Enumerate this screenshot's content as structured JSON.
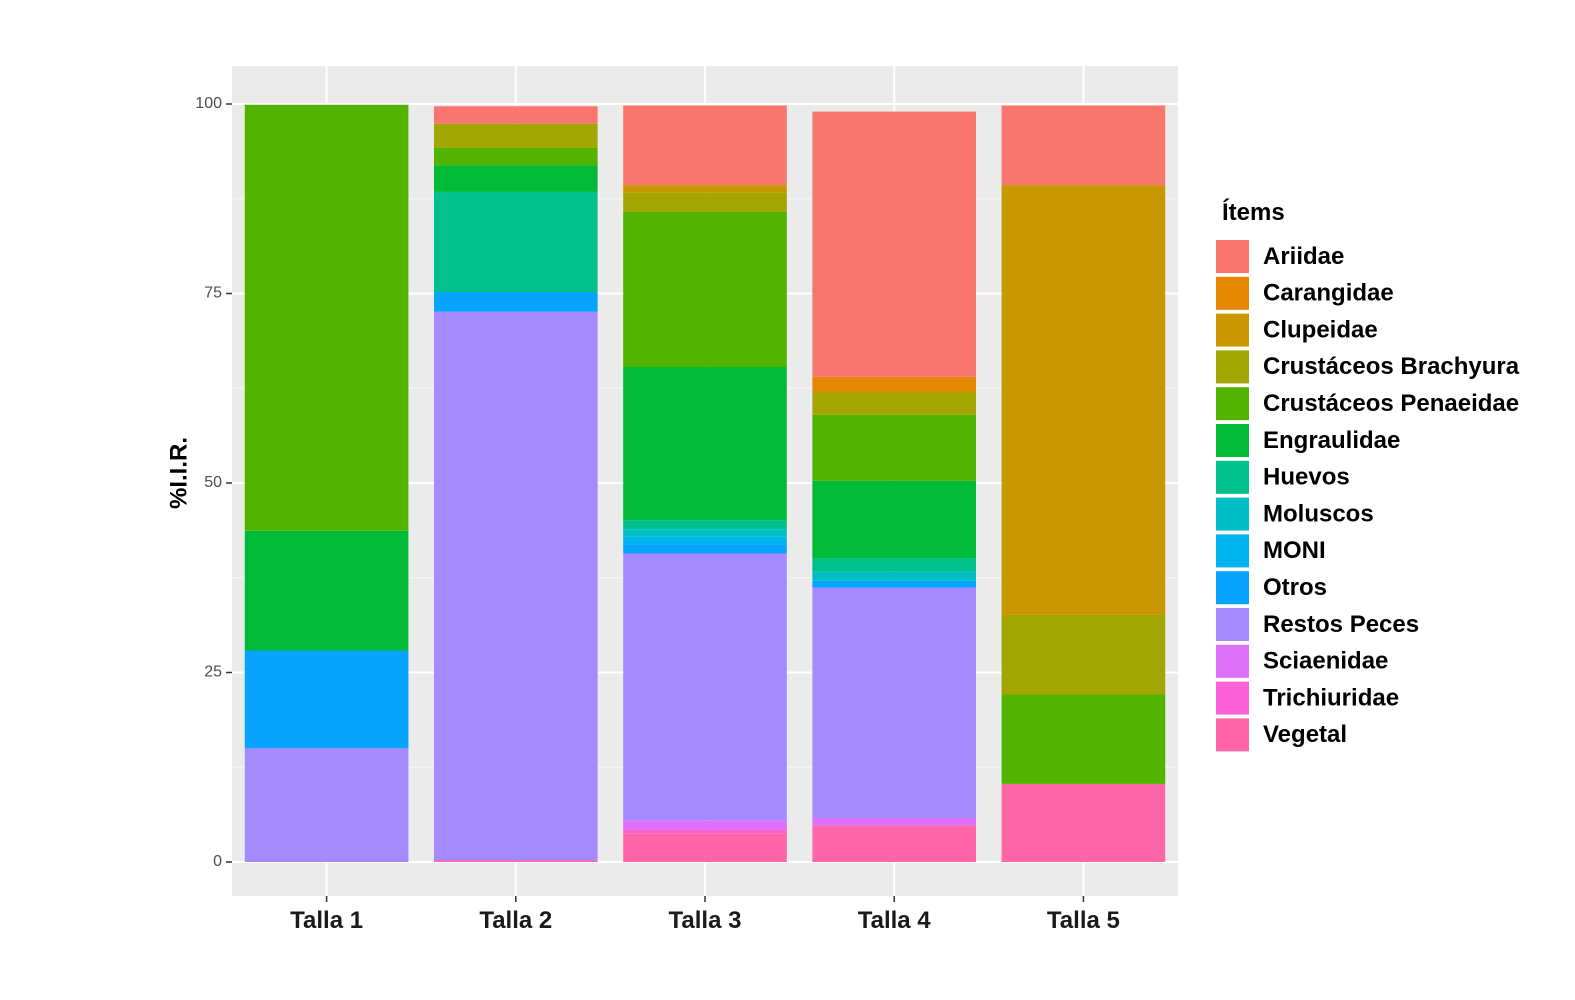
{
  "chart_data": {
    "type": "bar",
    "stacked": true,
    "title": "",
    "xlabel": "",
    "ylabel": "%I.I.R.",
    "ylim": [
      0,
      100
    ],
    "yticks": [
      0,
      25,
      50,
      75,
      100
    ],
    "grid": true,
    "legend_title": "Ítems",
    "legend_position": "right",
    "categories": [
      "Talla 1",
      "Talla 2",
      "Talla 3",
      "Talla 4",
      "Talla 5"
    ],
    "series": [
      {
        "name": "Ariidae",
        "color": "#F8766D",
        "values": [
          0,
          2.3,
          10.5,
          35.0,
          10.5
        ]
      },
      {
        "name": "Carangidae",
        "color": "#E58700",
        "values": [
          0,
          0,
          0,
          2.0,
          0
        ]
      },
      {
        "name": "Clupeidae",
        "color": "#C99800",
        "values": [
          0,
          0,
          1.0,
          0,
          56.7
        ]
      },
      {
        "name": "Crustáceos Brachyura",
        "color": "#A3A500",
        "values": [
          0,
          3.2,
          2.5,
          3.0,
          10.5
        ]
      },
      {
        "name": "Crustáceos Penaeidae",
        "color": "#53B400",
        "values": [
          56.2,
          2.3,
          20.5,
          8.7,
          11.8
        ]
      },
      {
        "name": "Engraulidae",
        "color": "#00BA38",
        "values": [
          15.8,
          3.5,
          20.2,
          10.2,
          0
        ]
      },
      {
        "name": "Huevos",
        "color": "#00C08B",
        "values": [
          0,
          13.2,
          1.2,
          1.8,
          0
        ]
      },
      {
        "name": "Moluscos",
        "color": "#00BFC4",
        "values": [
          0,
          0,
          1.0,
          1.2,
          0
        ]
      },
      {
        "name": "MONI",
        "color": "#00B4F0",
        "values": [
          0,
          0,
          1.0,
          0,
          0
        ]
      },
      {
        "name": "Otros",
        "color": "#06A4FF",
        "values": [
          12.9,
          2.6,
          1.2,
          0.9,
          0
        ]
      },
      {
        "name": "Restos Peces",
        "color": "#A58AFF",
        "values": [
          15.0,
          72.4,
          35.2,
          30.4,
          0
        ]
      },
      {
        "name": "Sciaenidae",
        "color": "#DF70F8",
        "values": [
          0,
          0,
          1.2,
          1.0,
          0
        ]
      },
      {
        "name": "Trichiuridae",
        "color": "#FB61D7",
        "values": [
          0,
          0,
          0.5,
          0,
          0
        ]
      },
      {
        "name": "Vegetal",
        "color": "#FF66A8",
        "values": [
          0,
          0.2,
          3.8,
          4.8,
          10.3
        ]
      }
    ]
  }
}
